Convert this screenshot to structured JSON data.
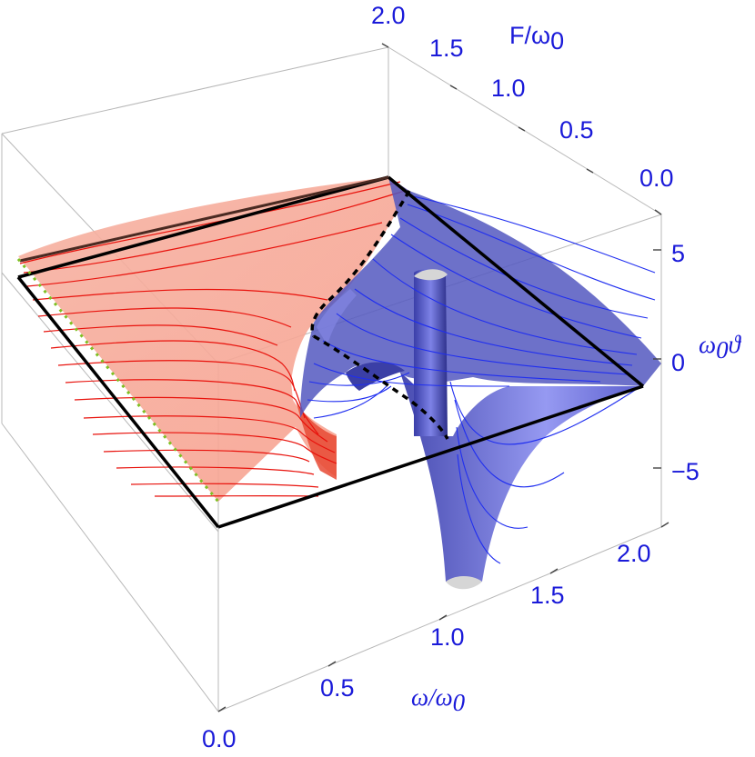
{
  "axes": {
    "x_label": "ω/ω0",
    "x_label_main": "ω/ω",
    "x_label_sub": "0",
    "y_label_main": "F/ω",
    "y_label_sub": "0",
    "z_label_main": "ω",
    "z_label_sub": "0",
    "z_label_tail": "ϑ",
    "x_ticks": [
      "0.0",
      "0.5",
      "1.0",
      "1.5",
      "2.0"
    ],
    "y_ticks": [
      "0.0",
      "0.5",
      "1.0",
      "1.5",
      "2.0"
    ],
    "z_ticks": [
      "5",
      "0",
      "−5"
    ]
  },
  "colors": {
    "red_surface": "#f7a08e",
    "red_contour": "#e8120c",
    "blue_surface": "#5458c0",
    "blue_contour": "#1f2ef0",
    "label": "#1a1ad9",
    "dotted_edge": "#7fbf22"
  }
}
